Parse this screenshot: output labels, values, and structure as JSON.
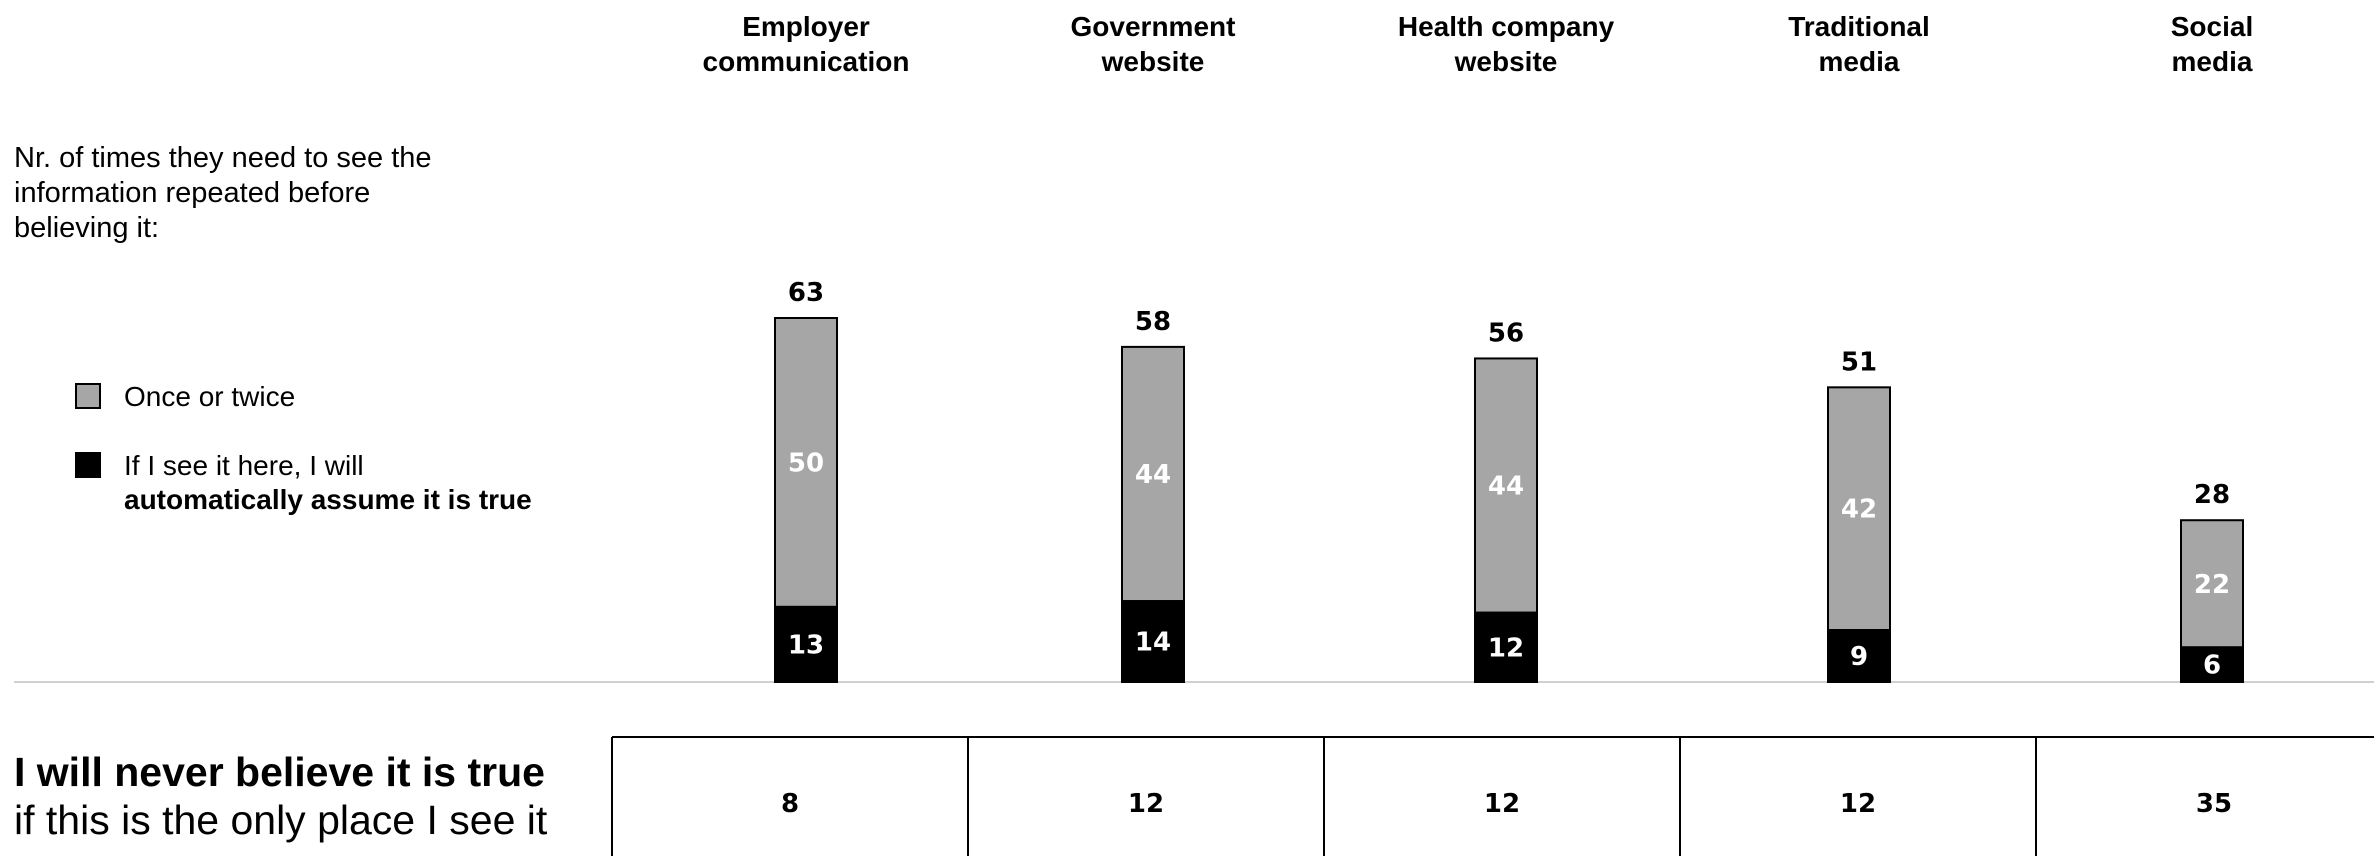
{
  "question": "Nr. of times they need to see the information repeated before believing it:",
  "legend": {
    "once": "Once or twice",
    "auto_line1": "If I see it here, I will",
    "auto_line2": "automatically assume it is true"
  },
  "never": {
    "bold": "I will never believe it is true",
    "rest": "if this is the only place I see it"
  },
  "colors": {
    "once": "#a6a6a6",
    "auto": "#000000",
    "seg_label_light": "#ffffff",
    "axis": "#d0d0d0"
  },
  "chart_data": {
    "type": "bar",
    "stacked": true,
    "categories": [
      [
        "Employer",
        "communication"
      ],
      [
        "Government",
        "website"
      ],
      [
        "Health company",
        "website"
      ],
      [
        "Traditional",
        "media"
      ],
      [
        "Social",
        "media"
      ]
    ],
    "series": [
      {
        "name": "If I see it here, I will automatically assume it is true",
        "values": [
          13,
          14,
          12,
          9,
          6
        ]
      },
      {
        "name": "Once or twice",
        "values": [
          50,
          44,
          44,
          42,
          22
        ]
      }
    ],
    "totals": [
      63,
      58,
      56,
      51,
      28
    ],
    "never_believe": [
      8,
      12,
      12,
      12,
      35
    ],
    "ylim": [
      0,
      63
    ],
    "grid": false,
    "legend_position": "left"
  }
}
